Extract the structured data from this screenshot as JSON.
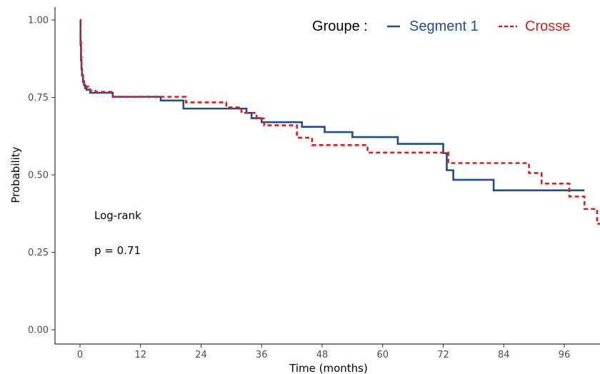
{
  "chart_data": {
    "type": "line",
    "title": "",
    "xlabel": "Time (months)",
    "ylabel": "Probability",
    "xlim": [
      -5,
      100
    ],
    "ylim": [
      -0.03,
      1.05
    ],
    "x_ticks": [
      0,
      12,
      24,
      36,
      48,
      60,
      72,
      84,
      96
    ],
    "x_tick_labels": [
      "0",
      "12",
      "24",
      "36",
      "48",
      "60",
      "72",
      "84",
      "96"
    ],
    "y_ticks": [
      0.0,
      0.25,
      0.5,
      0.75,
      1.0
    ],
    "y_tick_labels": [
      "0.00",
      "0.25",
      "0.50",
      "0.75",
      "1.00"
    ],
    "grid": false,
    "legend": {
      "title": "Groupe :",
      "placement": "top-right",
      "entries": [
        "Segment 1",
        "Crosse"
      ]
    },
    "annotations": [
      "Log-rank",
      "p = 0.71"
    ],
    "series": [
      {
        "name": "Segment 1",
        "color": "#1f4e8c",
        "line_style": "solid",
        "step": true,
        "points": [
          [
            0,
            1.0
          ],
          [
            0.1,
            0.92
          ],
          [
            0.2,
            0.87
          ],
          [
            0.3,
            0.84
          ],
          [
            0.4,
            0.82
          ],
          [
            0.6,
            0.8
          ],
          [
            0.8,
            0.79
          ],
          [
            1.0,
            0.78
          ],
          [
            1.3,
            0.775
          ],
          [
            2,
            0.765
          ],
          [
            6.5,
            0.752
          ],
          [
            16,
            0.74
          ],
          [
            20.5,
            0.714
          ],
          [
            33,
            0.7
          ],
          [
            34,
            0.683
          ],
          [
            36,
            0.67
          ],
          [
            44,
            0.655
          ],
          [
            48.5,
            0.638
          ],
          [
            54,
            0.622
          ],
          [
            63,
            0.6
          ],
          [
            72,
            0.57
          ],
          [
            72.7,
            0.515
          ],
          [
            74,
            0.484
          ],
          [
            82,
            0.45
          ],
          [
            100,
            0.45
          ]
        ]
      },
      {
        "name": "Crosse",
        "color": "#e31a1c",
        "line_style": "dashed",
        "step": true,
        "points": [
          [
            0,
            1.0
          ],
          [
            0.1,
            0.93
          ],
          [
            0.2,
            0.88
          ],
          [
            0.3,
            0.85
          ],
          [
            0.4,
            0.83
          ],
          [
            0.6,
            0.81
          ],
          [
            0.8,
            0.795
          ],
          [
            1.2,
            0.785
          ],
          [
            2,
            0.772
          ],
          [
            3,
            0.768
          ],
          [
            6.5,
            0.752
          ],
          [
            21,
            0.734
          ],
          [
            29,
            0.718
          ],
          [
            32,
            0.7
          ],
          [
            35,
            0.682
          ],
          [
            36.5,
            0.66
          ],
          [
            43,
            0.62
          ],
          [
            46,
            0.596
          ],
          [
            57,
            0.572
          ],
          [
            73,
            0.538
          ],
          [
            89,
            0.506
          ],
          [
            91.5,
            0.472
          ],
          [
            97,
            0.43
          ],
          [
            100,
            0.39
          ],
          [
            102.5,
            0.342
          ],
          [
            105,
            0.342
          ]
        ]
      }
    ]
  }
}
